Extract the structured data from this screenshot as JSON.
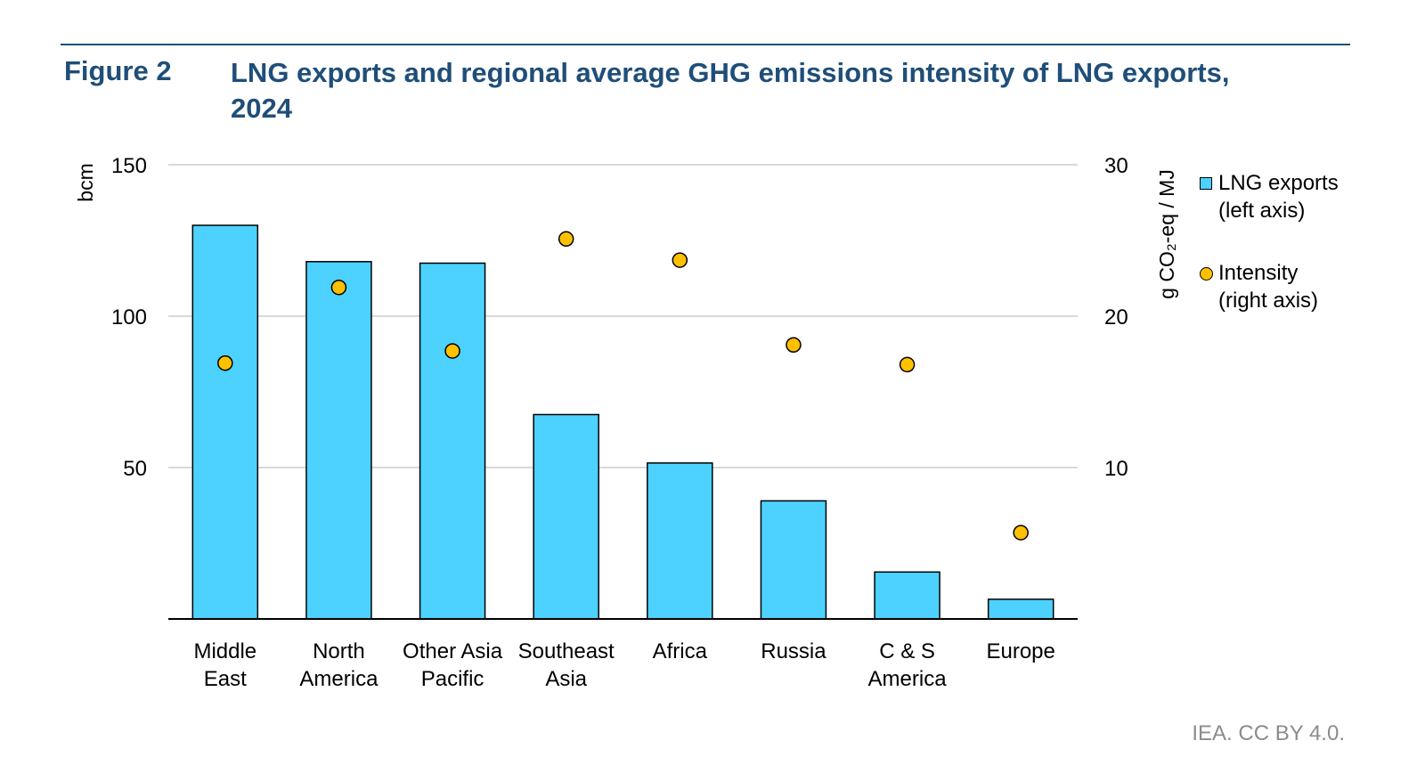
{
  "figure": {
    "label": "Figure 2",
    "title": "LNG exports and regional average GHG emissions intensity of LNG exports, 2024",
    "credit": "IEA. CC BY 4.0."
  },
  "legend": {
    "exports": "LNG exports\n(left axis)",
    "intensity": "Intensity\n(right axis)"
  },
  "chart_data": {
    "type": "bar",
    "categories": [
      [
        "Middle",
        "East"
      ],
      [
        "North",
        "America"
      ],
      [
        "Other Asia",
        "Pacific"
      ],
      [
        "Southeast",
        "Asia"
      ],
      [
        "Africa"
      ],
      [
        "Russia"
      ],
      [
        "C & S",
        "America"
      ],
      [
        "Europe"
      ]
    ],
    "series": [
      {
        "name": "LNG exports (left axis)",
        "type": "bar",
        "axis": "left",
        "color": "#4dd2ff",
        "values": [
          130,
          118,
          117.5,
          67.5,
          51.5,
          39,
          15.5,
          6.5
        ]
      },
      {
        "name": "Intensity (right axis)",
        "type": "scatter",
        "axis": "right",
        "color": "#ffc000",
        "values": [
          16.9,
          21.9,
          17.7,
          25.1,
          23.7,
          18.1,
          16.8,
          5.7
        ]
      }
    ],
    "ylabel_left": "bcm",
    "ylabel_right": "g CO₂-eq / MJ",
    "ylim_left": [
      0,
      150
    ],
    "yticks_left": [
      50,
      100,
      150
    ],
    "ylim_right": [
      0,
      30
    ],
    "yticks_right": [
      10,
      20,
      30
    ],
    "grid": true,
    "legend_position": "right"
  }
}
